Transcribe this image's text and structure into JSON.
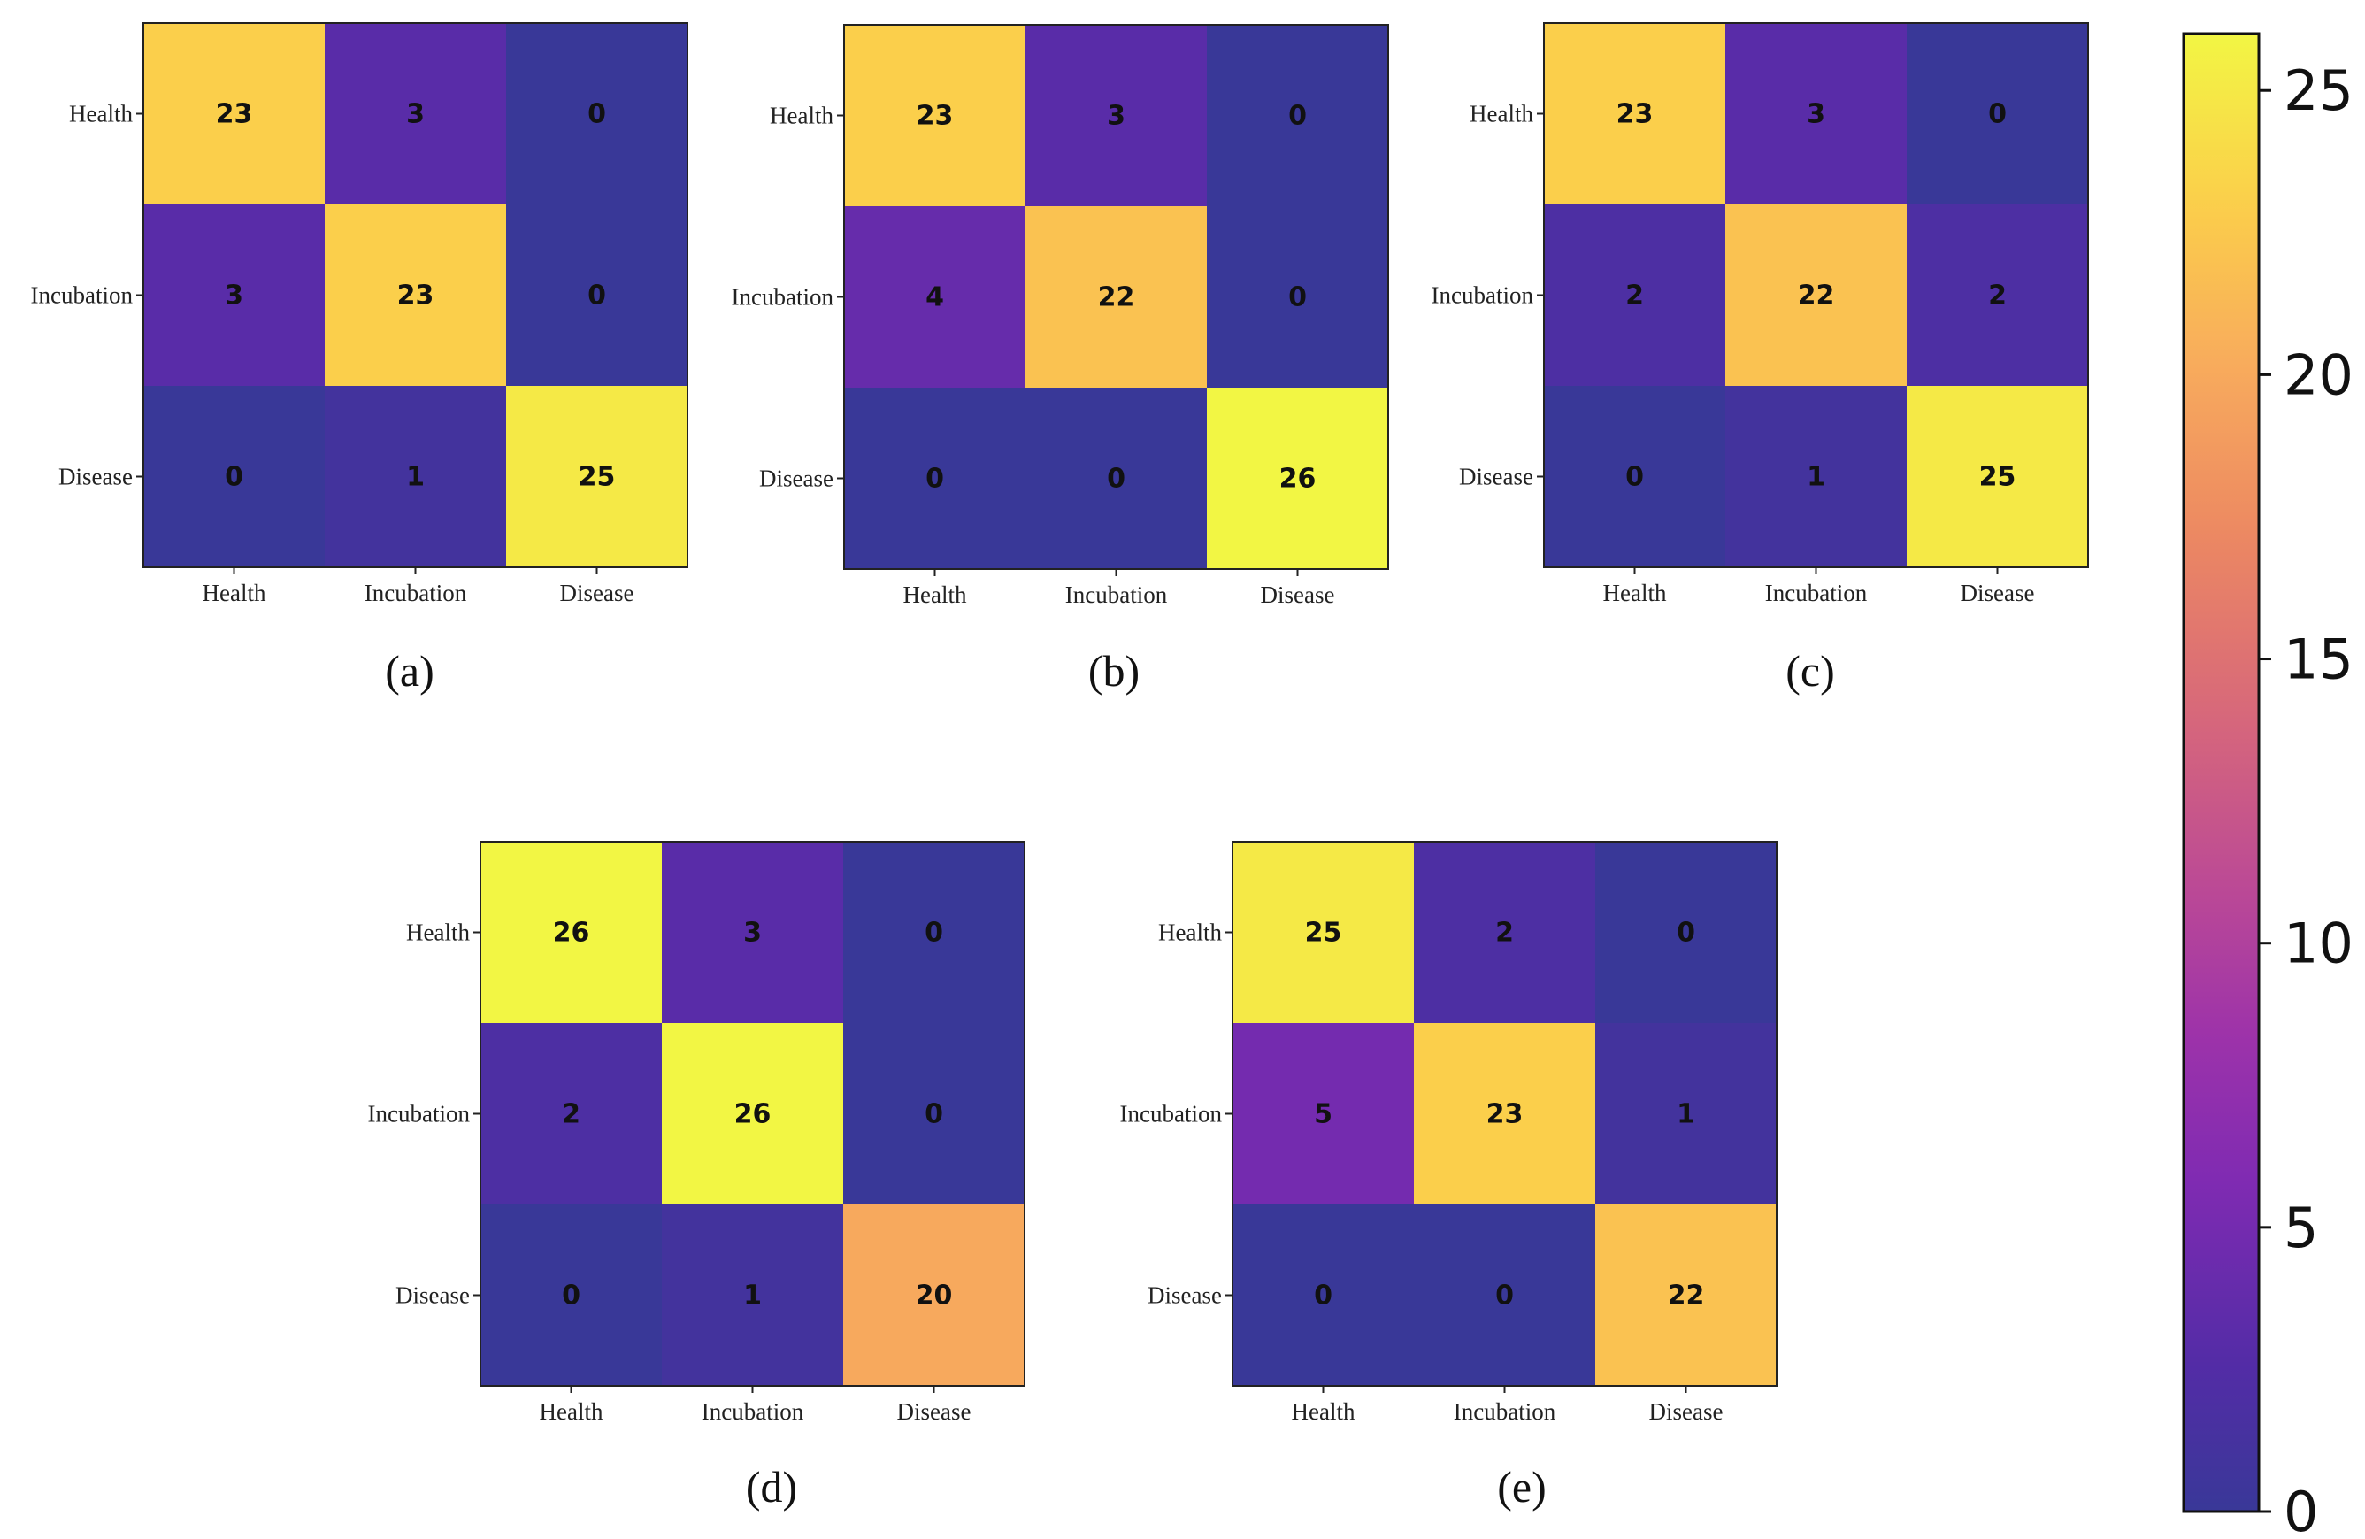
{
  "chart_data": [
    {
      "type": "heatmap",
      "label": "(a)",
      "x_categories": [
        "Health",
        "Incubation",
        "Disease"
      ],
      "y_categories": [
        "Health",
        "Incubation",
        "Disease"
      ],
      "values": [
        [
          23,
          3,
          0
        ],
        [
          3,
          23,
          0
        ],
        [
          0,
          1,
          25
        ]
      ]
    },
    {
      "type": "heatmap",
      "label": "(b)",
      "x_categories": [
        "Health",
        "Incubation",
        "Disease"
      ],
      "y_categories": [
        "Health",
        "Incubation",
        "Disease"
      ],
      "values": [
        [
          23,
          3,
          0
        ],
        [
          4,
          22,
          0
        ],
        [
          0,
          0,
          26
        ]
      ]
    },
    {
      "type": "heatmap",
      "label": "(c)",
      "x_categories": [
        "Health",
        "Incubation",
        "Disease"
      ],
      "y_categories": [
        "Health",
        "Incubation",
        "Disease"
      ],
      "values": [
        [
          23,
          3,
          0
        ],
        [
          2,
          22,
          2
        ],
        [
          0,
          1,
          25
        ]
      ]
    },
    {
      "type": "heatmap",
      "label": "(d)",
      "x_categories": [
        "Health",
        "Incubation",
        "Disease"
      ],
      "y_categories": [
        "Health",
        "Incubation",
        "Disease"
      ],
      "values": [
        [
          26,
          3,
          0
        ],
        [
          2,
          26,
          0
        ],
        [
          0,
          1,
          20
        ]
      ]
    },
    {
      "type": "heatmap",
      "label": "(e)",
      "x_categories": [
        "Health",
        "Incubation",
        "Disease"
      ],
      "y_categories": [
        "Health",
        "Incubation",
        "Disease"
      ],
      "values": [
        [
          25,
          2,
          0
        ],
        [
          5,
          23,
          1
        ],
        [
          0,
          0,
          22
        ]
      ]
    }
  ],
  "colorbar": {
    "colormap": "plasma",
    "min": 0,
    "max": 26,
    "tick_values": [
      0,
      5,
      10,
      15,
      20,
      25
    ],
    "tick_labels": [
      "0",
      "5",
      "10",
      "15",
      "20",
      "25"
    ]
  }
}
